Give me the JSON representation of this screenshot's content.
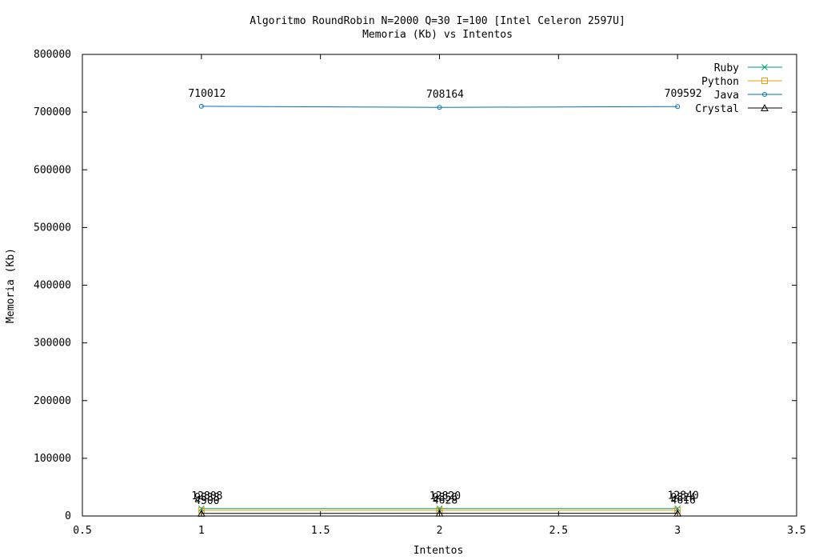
{
  "chart_data": {
    "type": "line",
    "title": "Algoritmo RoundRobin N=2000 Q=30 I=100 [Intel Celeron 2597U]",
    "subtitle": "Memoria (Kb) vs Intentos",
    "xlabel": "Intentos",
    "ylabel": "Memoria (Kb)",
    "xlim": [
      0.5,
      3.5
    ],
    "ylim": [
      0,
      800000
    ],
    "xticks": [
      "0.5",
      "1",
      "1.5",
      "2",
      "2.5",
      "3",
      "3.5"
    ],
    "yticks": [
      "0",
      "100000",
      "200000",
      "300000",
      "400000",
      "500000",
      "600000",
      "700000",
      "800000"
    ],
    "grid": false,
    "legend_position": "top-right",
    "x": [
      1,
      2,
      3
    ],
    "series": [
      {
        "name": "Ruby",
        "color": "#009e73",
        "marker": "x",
        "values": [
          12808,
          12820,
          12840
        ],
        "labels": [
          "12808",
          "12820",
          "12840"
        ]
      },
      {
        "name": "Python",
        "color": "#e69f00",
        "marker": "square",
        "values": [
          9888,
          9856,
          9824
        ],
        "labels": [
          "9888",
          "9856",
          "9824"
        ]
      },
      {
        "name": "Java",
        "color": "#0072b2",
        "marker": "circle",
        "values": [
          710012,
          708164,
          709592
        ],
        "labels": [
          "710012",
          "708164",
          "709592"
        ]
      },
      {
        "name": "Crystal",
        "color": "#000000",
        "marker": "triangle",
        "values": [
          4500,
          4628,
          4616
        ],
        "labels": [
          "4500",
          "4628",
          "4616"
        ]
      }
    ]
  }
}
